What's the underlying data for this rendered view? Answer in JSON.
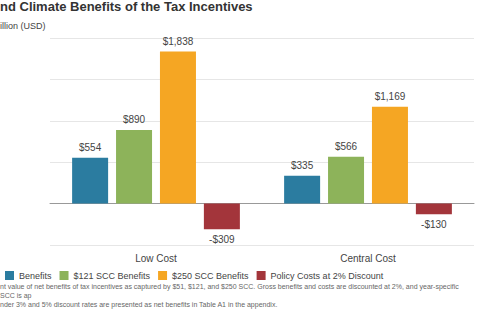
{
  "chart_data": {
    "type": "bar",
    "title": "nd Climate Benefits of the Tax Incentives",
    "y_label": "illion (USD)",
    "categories": [
      "Low Cost",
      "Central Cost"
    ],
    "series": [
      {
        "name": "Benefits",
        "color": "#2b7ca0",
        "values": [
          554,
          335
        ],
        "value_labels": [
          "$554",
          "$335"
        ]
      },
      {
        "name": "$121 SCC Benefits",
        "color": "#8db35a",
        "values": [
          890,
          566
        ],
        "value_labels": [
          "$890",
          "$566"
        ]
      },
      {
        "name": "$250 SCC Benefits",
        "color": "#f5a623",
        "values": [
          1838,
          1169
        ],
        "value_labels": [
          "$1,838",
          "$1,169"
        ]
      },
      {
        "name": "Policy Costs at 2% Discount",
        "color": "#a3353b",
        "values": [
          -309,
          -130
        ],
        "value_labels": [
          "-$309",
          "-$130"
        ]
      }
    ],
    "ylim": [
      -500,
      2000
    ],
    "yticks": [
      -500,
      0,
      500,
      1000,
      1500,
      2000
    ],
    "grid": true,
    "legend": "bottom",
    "data_labels": true,
    "tick_labels": "x",
    "notes": [
      "nt value of net benefits of tax incentives as captured by $51, $121, and $250 SCC. Gross benefits and costs are discounted at 2%, and year-specific SCC is ap",
      "nder 3% and 5% discount rates are presented as net benefits in Table A1 in the appendix."
    ]
  }
}
